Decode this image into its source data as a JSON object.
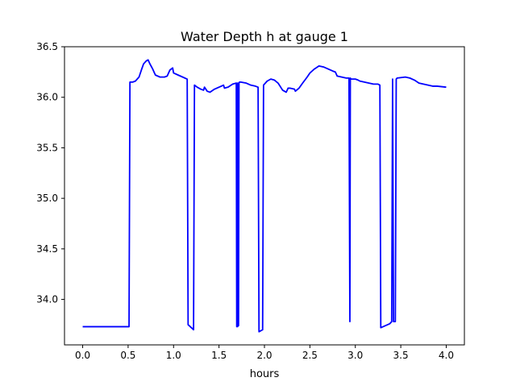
{
  "chart_data": {
    "type": "line",
    "title": "Water Depth h at gauge 1",
    "xlabel": "hours",
    "ylabel": "",
    "xlim": [
      -0.2,
      4.2
    ],
    "ylim": [
      33.55,
      36.5
    ],
    "xticks": [
      0.0,
      0.5,
      1.0,
      1.5,
      2.0,
      2.5,
      3.0,
      3.5,
      4.0
    ],
    "xtick_labels": [
      "0.0",
      "0.5",
      "1.0",
      "1.5",
      "2.0",
      "2.5",
      "3.0",
      "3.5",
      "4.0"
    ],
    "yticks": [
      34.0,
      34.5,
      35.0,
      35.5,
      36.0,
      36.5
    ],
    "ytick_labels": [
      "34.0",
      "34.5",
      "35.0",
      "35.5",
      "36.0",
      "36.5"
    ],
    "grid": false,
    "series": [
      {
        "color": "#0000ff",
        "x": [
          0.0,
          0.51,
          0.52,
          0.55,
          0.58,
          0.62,
          0.65,
          0.67,
          0.7,
          0.72,
          0.74,
          0.77,
          0.8,
          0.85,
          0.9,
          0.93,
          0.96,
          0.99,
          1.0,
          1.05,
          1.1,
          1.15,
          1.16,
          1.22,
          1.23,
          1.26,
          1.3,
          1.33,
          1.34,
          1.37,
          1.4,
          1.45,
          1.5,
          1.55,
          1.56,
          1.6,
          1.65,
          1.69,
          1.695,
          1.7,
          1.705,
          1.71,
          1.715,
          1.72,
          1.725,
          1.74,
          1.8,
          1.85,
          1.9,
          1.93,
          1.94,
          1.98,
          1.99,
          2.03,
          2.07,
          2.11,
          2.15,
          2.2,
          2.24,
          2.26,
          2.28,
          2.33,
          2.34,
          2.38,
          2.42,
          2.47,
          2.5,
          2.55,
          2.6,
          2.65,
          2.7,
          2.75,
          2.78,
          2.8,
          2.85,
          2.9,
          2.93,
          2.94,
          2.945,
          2.95,
          3.0,
          3.03,
          3.05,
          3.1,
          3.15,
          3.2,
          3.25,
          3.27,
          3.28,
          3.33,
          3.38,
          3.4,
          3.41,
          3.42,
          3.44,
          3.45,
          3.46,
          3.55,
          3.6,
          3.65,
          3.7,
          3.8,
          3.85,
          3.9,
          4.0
        ],
        "y": [
          33.73,
          33.73,
          36.15,
          36.15,
          36.16,
          36.2,
          36.28,
          36.33,
          36.36,
          36.37,
          36.33,
          36.28,
          36.22,
          36.2,
          36.2,
          36.21,
          36.27,
          36.29,
          36.24,
          36.22,
          36.2,
          36.18,
          33.75,
          33.7,
          36.12,
          36.1,
          36.08,
          36.07,
          36.1,
          36.06,
          36.05,
          36.08,
          36.1,
          36.12,
          36.09,
          36.1,
          36.13,
          36.14,
          33.73,
          36.14,
          33.73,
          36.14,
          33.74,
          36.14,
          36.15,
          36.15,
          36.14,
          36.12,
          36.11,
          36.1,
          33.68,
          33.7,
          36.12,
          36.16,
          36.18,
          36.17,
          36.14,
          36.07,
          36.05,
          36.09,
          36.09,
          36.08,
          36.06,
          36.09,
          36.14,
          36.2,
          36.24,
          36.28,
          36.31,
          36.3,
          36.28,
          36.26,
          36.25,
          36.21,
          36.2,
          36.19,
          36.19,
          33.78,
          36.19,
          36.18,
          36.18,
          36.17,
          36.16,
          36.15,
          36.14,
          36.13,
          36.13,
          36.12,
          33.72,
          33.74,
          33.76,
          33.78,
          36.18,
          33.78,
          33.78,
          36.18,
          36.19,
          36.2,
          36.19,
          36.17,
          36.14,
          36.12,
          36.11,
          36.11,
          36.1
        ]
      }
    ]
  }
}
